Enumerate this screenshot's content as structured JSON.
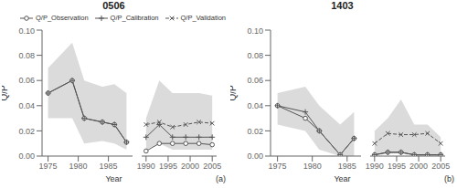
{
  "chart_data": [
    {
      "type": "line",
      "title": "0506",
      "xlabel": "Year",
      "ylabel": "Q/P",
      "annotations": [
        "(a)"
      ],
      "x": [
        1975,
        1979,
        1981,
        1984,
        1986,
        1988
      ],
      "xlim": [
        1974,
        1989
      ],
      "xticks": [
        1975,
        1980,
        1985
      ],
      "ylim": [
        0.0,
        0.1
      ],
      "yticks": [
        {
          "value": 0.0,
          "label": "0.00"
        },
        0.02,
        0.04,
        0.06,
        0.08,
        {
          "value": 0.1,
          "label": "0.10"
        }
      ],
      "grid": false,
      "series": [
        {
          "type": "area",
          "color": "#cccccc",
          "lower": [
            0.03,
            0.03,
            0.01,
            0.012,
            0.01,
            0.005
          ],
          "upper": [
            0.07,
            0.09,
            0.06,
            0.055,
            0.057,
            0.05
          ]
        },
        {
          "type": "line",
          "color": "#555555",
          "marker": "circle",
          "line_style": "solid",
          "values": [
            0.05,
            0.06,
            0.03,
            0.027,
            0.025,
            0.011
          ]
        },
        {
          "type": "line",
          "color": "#555555",
          "marker": "plus",
          "line_style": "solid",
          "values": [
            0.05,
            0.06,
            0.03,
            0.027,
            0.025,
            0.011
          ]
        }
      ]
    },
    {
      "type": "line",
      "legend": "upper right",
      "tick_labels": "x",
      "x": [
        1990,
        1993,
        1996,
        1999,
        2002,
        2005
      ],
      "xlim": [
        1989,
        2006
      ],
      "xticks": [
        1990,
        1995,
        2000,
        2005
      ],
      "ylim": [
        0.0,
        0.1
      ],
      "grid": false,
      "series": [
        {
          "type": "area",
          "color": "#cccccc",
          "lower": [
            0.005,
            0.01,
            0.005,
            0.005,
            0.005,
            0.005
          ],
          "upper": [
            0.03,
            0.06,
            0.05,
            0.05,
            0.05,
            0.048
          ]
        },
        {
          "type": "line",
          "name": "Q/P_Observation",
          "color": "#555555",
          "marker": "circle",
          "line_style": "solid",
          "values": [
            0.004,
            0.01,
            0.01,
            0.01,
            0.01,
            0.009
          ]
        },
        {
          "type": "line",
          "name": "Q/P_Calibration",
          "color": "#555555",
          "marker": "plus",
          "line_style": "solid",
          "values": [
            0.015,
            0.025,
            0.015,
            0.015,
            0.015,
            0.015
          ]
        },
        {
          "type": "line",
          "name": "Q/P_Validation",
          "color": "#555555",
          "marker": "x",
          "line_style": "dashed",
          "values": [
            0.025,
            0.027,
            0.023,
            0.025,
            0.027,
            0.026
          ]
        }
      ]
    },
    {
      "type": "line",
      "title": "1403",
      "xlabel": "Year",
      "ylabel": "Q/P",
      "annotations": [
        "(b)"
      ],
      "x": [
        1975,
        1979,
        1981,
        1984,
        1986
      ],
      "xlim": [
        1974,
        1987
      ],
      "xticks": [
        1975,
        1980,
        1985
      ],
      "ylim": [
        0.0,
        0.1
      ],
      "yticks": [
        {
          "value": 0.0,
          "label": "0.00"
        },
        0.02,
        0.04,
        0.06,
        0.08,
        {
          "value": 0.1,
          "label": "0.10"
        }
      ],
      "grid": false,
      "series": [
        {
          "type": "area",
          "color": "#cccccc",
          "lower": [
            0.025,
            0.02,
            0.005,
            0.0,
            0.0
          ],
          "upper": [
            0.05,
            0.055,
            0.04,
            0.025,
            0.035
          ]
        },
        {
          "type": "line",
          "color": "#555555",
          "marker": "circle",
          "line_style": "solid",
          "values": [
            0.04,
            0.03,
            0.02,
            0.001,
            0.014
          ]
        },
        {
          "type": "line",
          "color": "#555555",
          "marker": "plus",
          "line_style": "solid",
          "values": [
            0.04,
            0.035,
            0.02,
            0.001,
            0.014
          ]
        }
      ]
    },
    {
      "type": "line",
      "tick_labels": "x",
      "x": [
        1990,
        1993,
        1996,
        1999,
        2002,
        2005
      ],
      "xlim": [
        1989,
        2006
      ],
      "xticks": [
        1990,
        1995,
        2000,
        2005
      ],
      "ylim": [
        0.0,
        0.1
      ],
      "grid": false,
      "series": [
        {
          "type": "area",
          "color": "#cccccc",
          "lower": [
            0.0,
            0.002,
            0.002,
            0.0,
            0.0,
            0.0
          ],
          "upper": [
            0.02,
            0.03,
            0.045,
            0.025,
            0.025,
            0.015
          ]
        },
        {
          "type": "line",
          "color": "#555555",
          "marker": "circle",
          "line_style": "solid",
          "values": [
            0.001,
            0.003,
            0.003,
            0.001,
            0.001,
            0.001
          ]
        },
        {
          "type": "line",
          "color": "#555555",
          "marker": "plus",
          "line_style": "solid",
          "values": [
            0.001,
            0.003,
            0.003,
            0.001,
            0.001,
            0.001
          ]
        },
        {
          "type": "line",
          "color": "#555555",
          "marker": "x",
          "line_style": "dashed",
          "values": [
            0.01,
            0.018,
            0.017,
            0.017,
            0.018,
            0.01
          ]
        }
      ]
    }
  ]
}
